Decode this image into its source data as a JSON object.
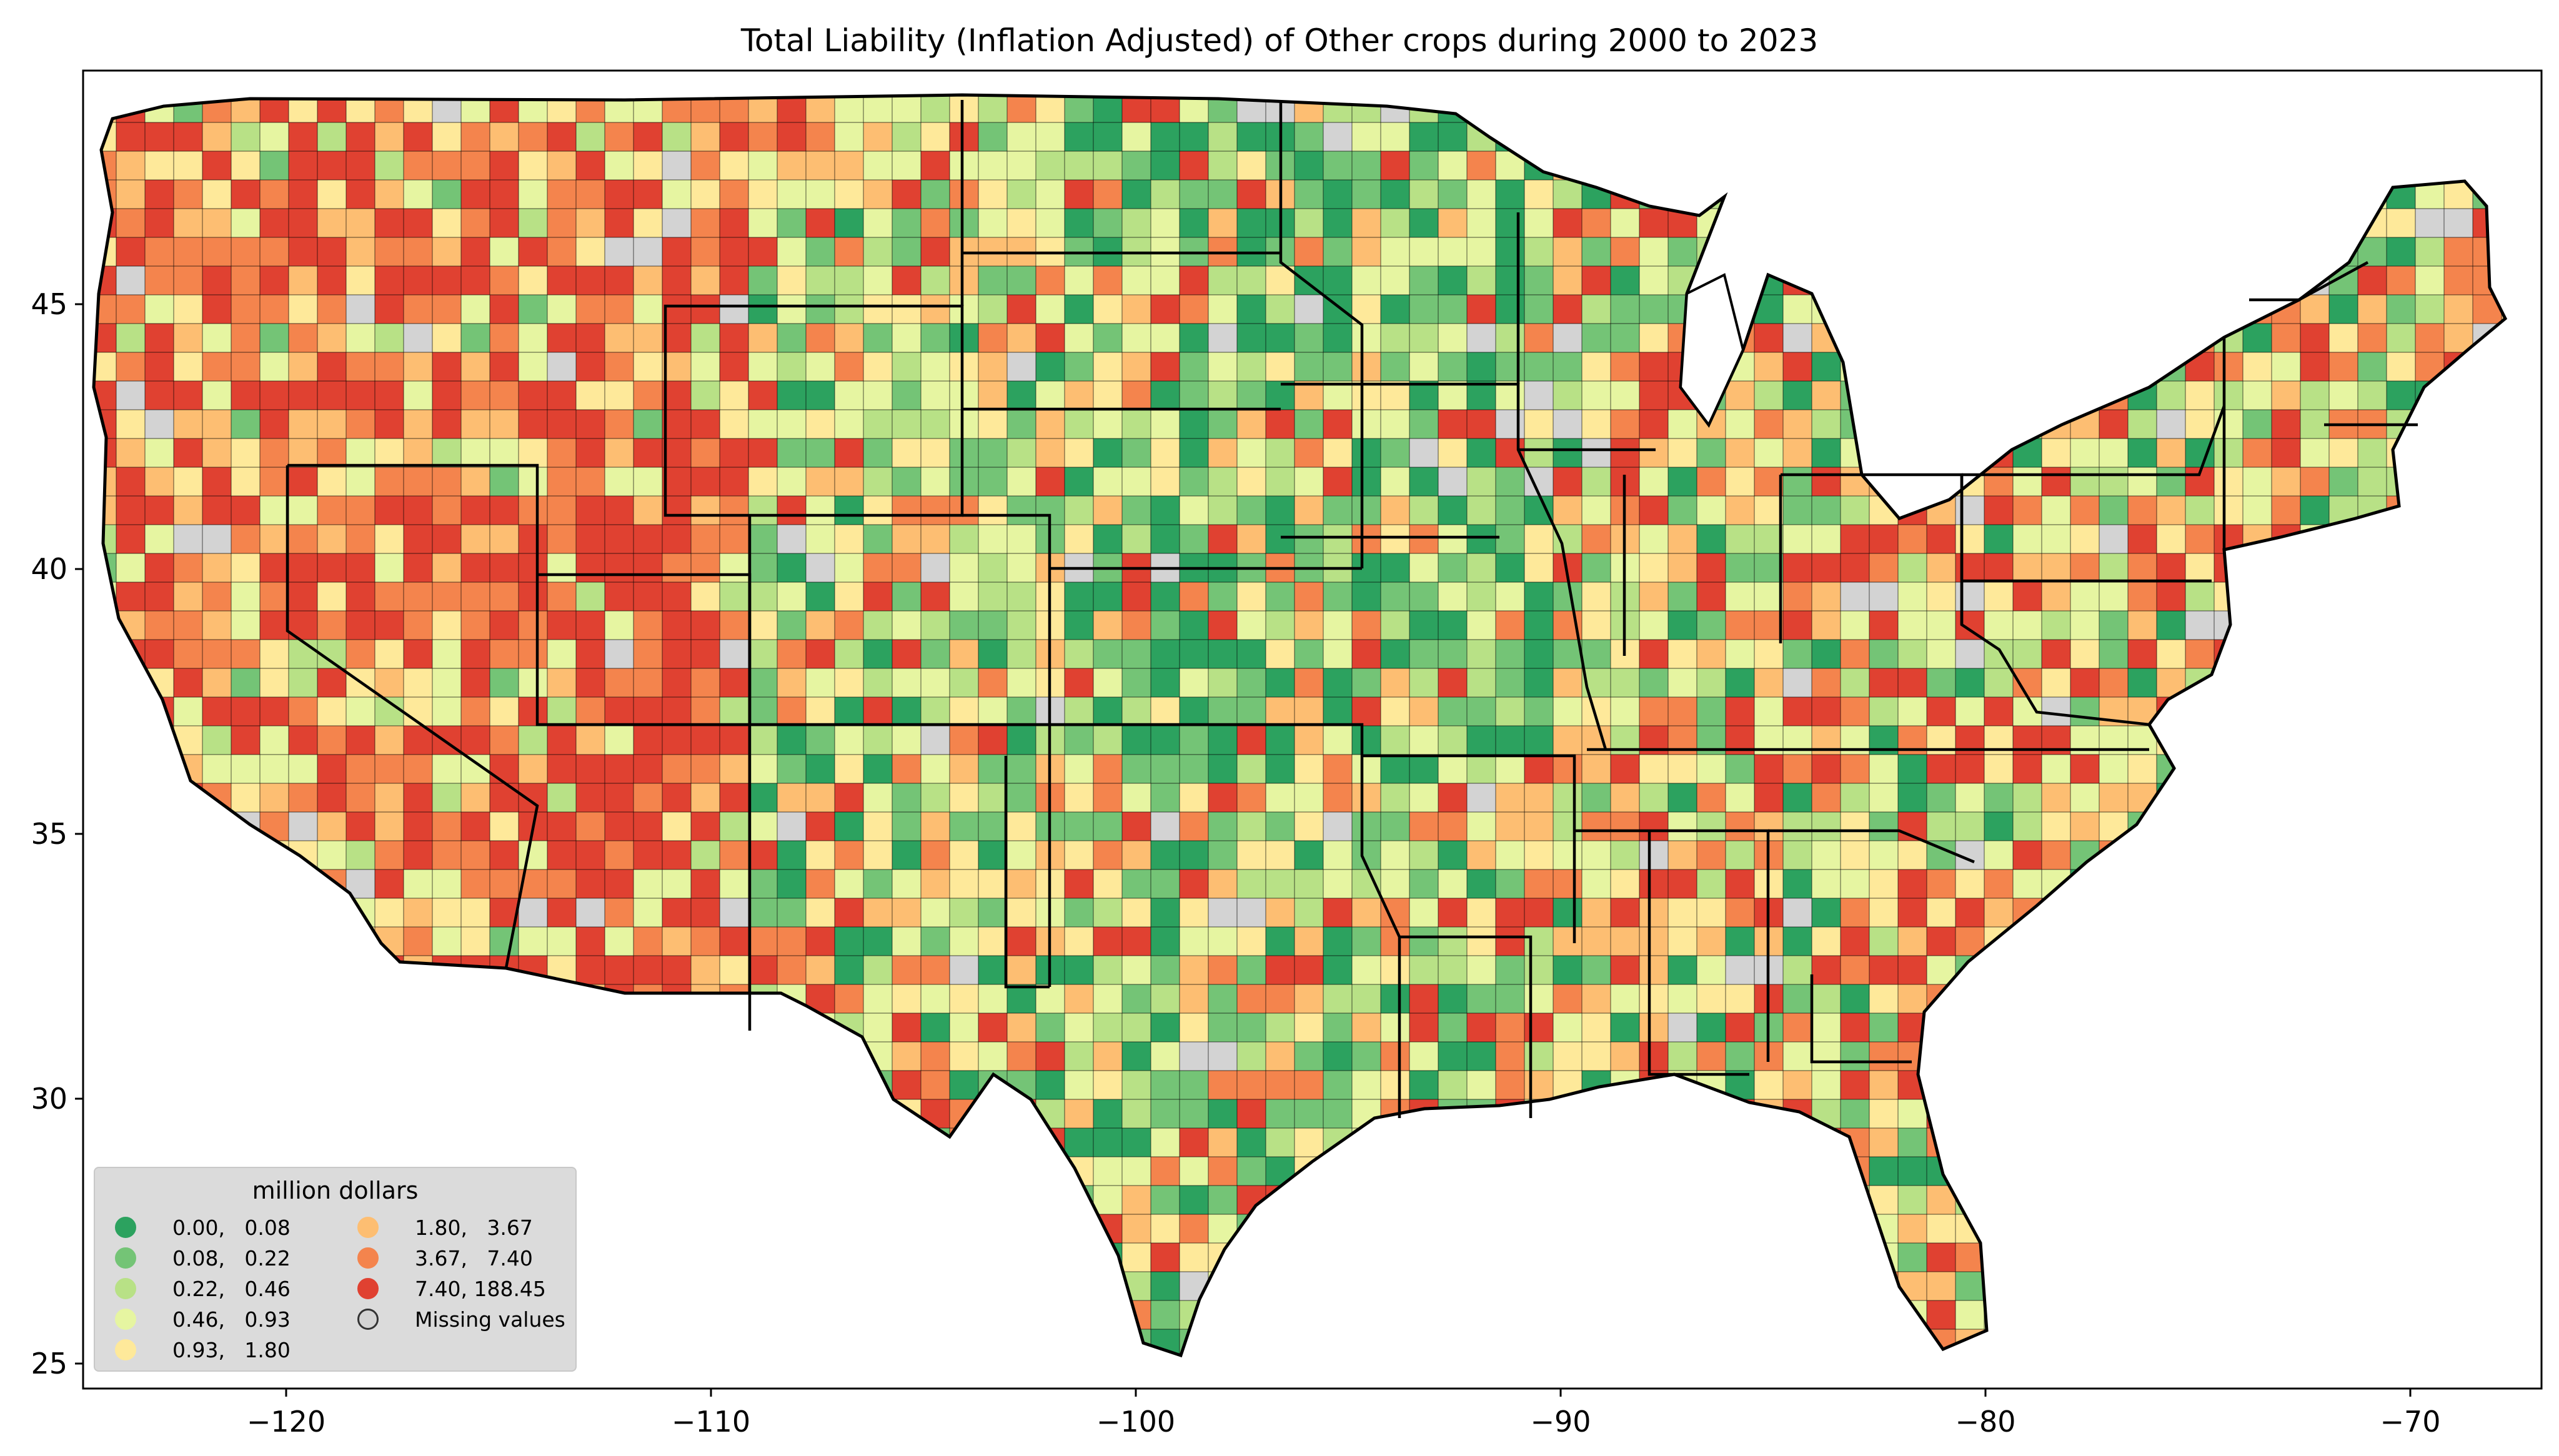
{
  "map": {
    "title": "Total Liability  (Inflation Adjusted) of Other crops during 2000 to 2023",
    "x_ticks": [
      "−120",
      "−110",
      "−100",
      "−90",
      "−80",
      "−70"
    ],
    "y_ticks": [
      "45",
      "40",
      "35",
      "30",
      "25"
    ],
    "lon_range": [
      -124.8,
      -66.5
    ],
    "lat_range": [
      24.4,
      49.6
    ],
    "boundary_color": "#000000",
    "missing_color": "#d3d3d3"
  },
  "legend": {
    "title": "million dollars",
    "entries": [
      {
        "label": "0.00,   0.08",
        "color": "#2ca25f"
      },
      {
        "label": "0.08,   0.22",
        "color": "#74c476"
      },
      {
        "label": "0.22,   0.46",
        "color": "#b8e186"
      },
      {
        "label": "0.46,   0.93",
        "color": "#e6f5a1"
      },
      {
        "label": "0.93,   1.80",
        "color": "#fee99a"
      },
      {
        "label": "1.80,   3.67",
        "color": "#fdbe72"
      },
      {
        "label": "3.67,   7.40",
        "color": "#f4844d"
      },
      {
        "label": "7.40, 188.45",
        "color": "#e04131"
      },
      {
        "label": "Missing values",
        "color": "#d3d3d3"
      }
    ]
  }
}
